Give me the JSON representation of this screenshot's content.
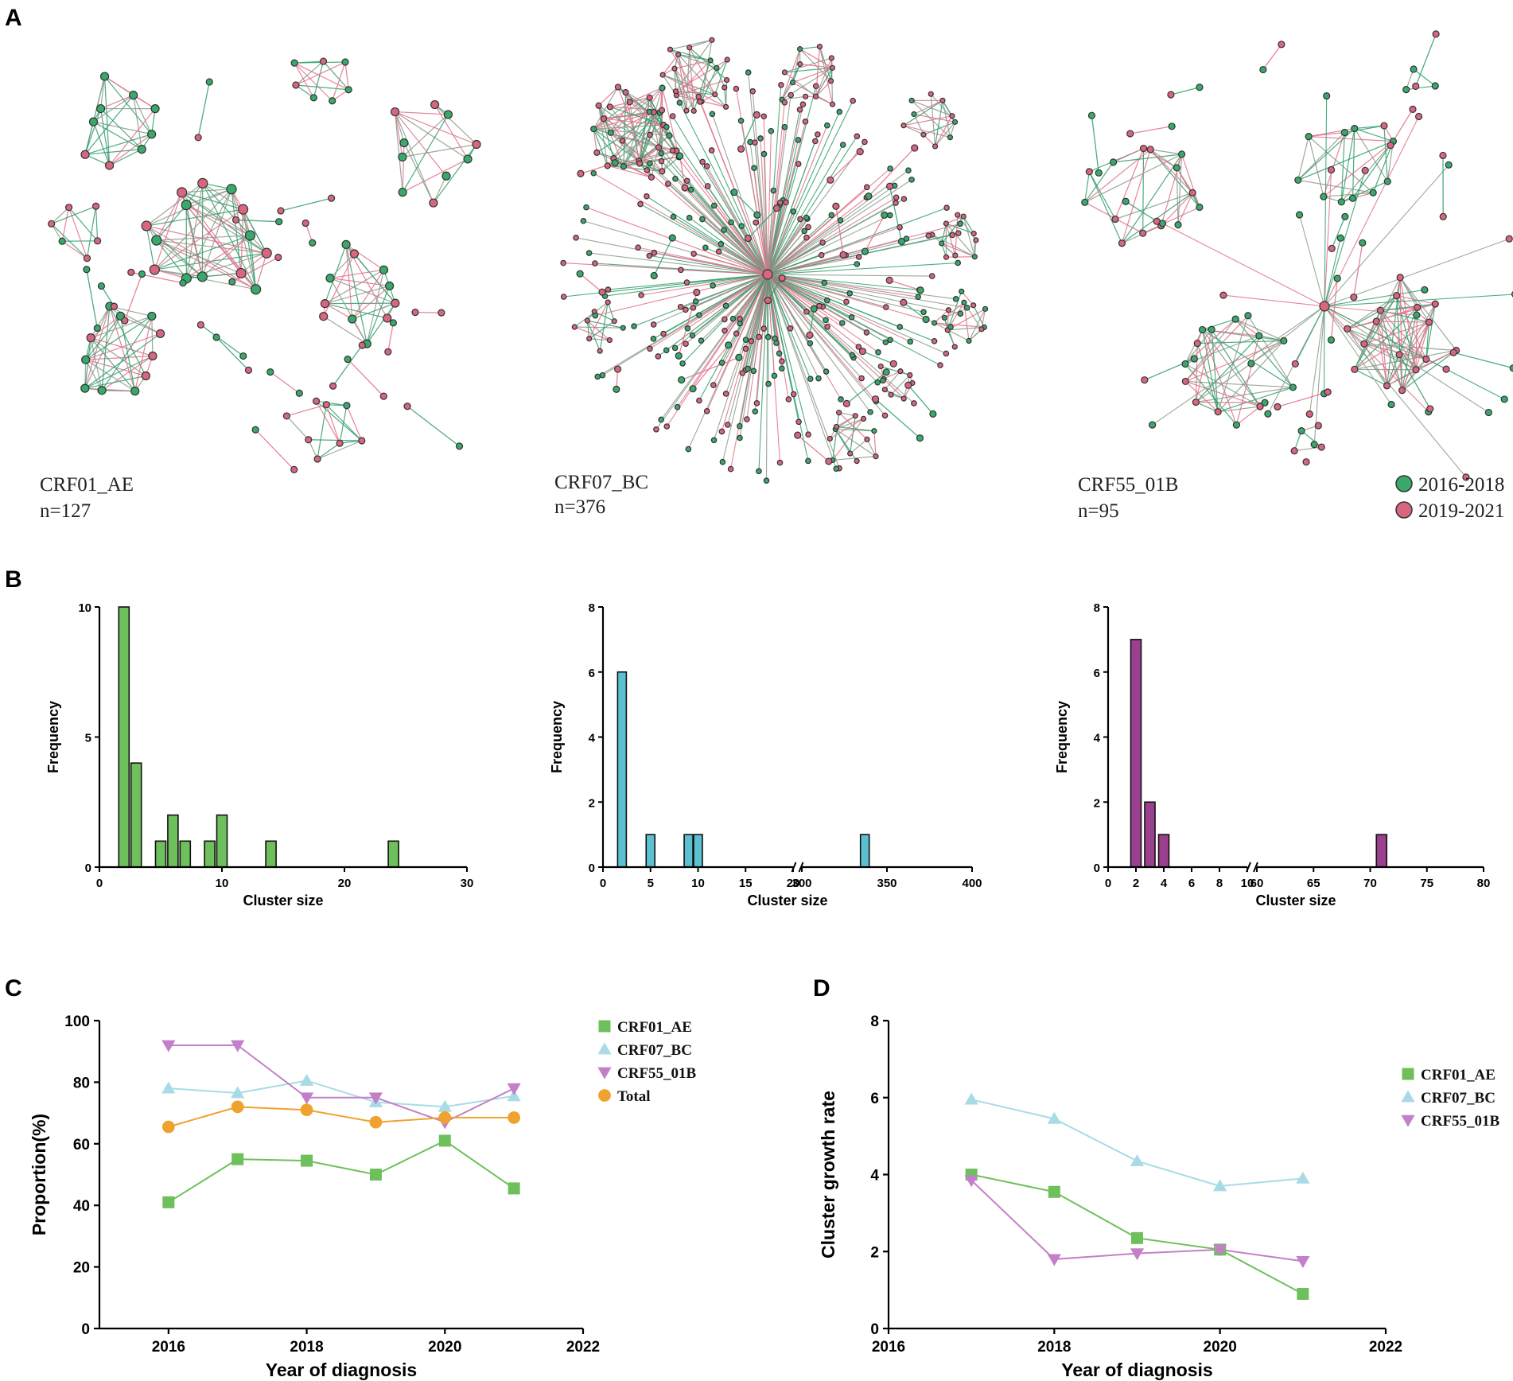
{
  "panels": {
    "A": "A",
    "B": "B",
    "C": "C",
    "D": "D"
  },
  "colors": {
    "green": "#39a96b",
    "pink": "#d9667f",
    "edge_green": "#2f9e6a",
    "edge_pink": "#e0708a",
    "edge_gray": "#8a9a8a",
    "hist_green": "#6dc05b",
    "hist_cyan": "#5bc0d0",
    "hist_purple": "#9b3f8f",
    "line_green": "#6dc05b",
    "line_cyan": "#a8dbe6",
    "line_purple": "#c380c8",
    "line_orange": "#f0a22e"
  },
  "networks": [
    {
      "name": "CRF01_AE",
      "count": "n=127"
    },
    {
      "name": "CRF07_BC",
      "count": "n=376"
    },
    {
      "name": "CRF55_01B",
      "count": "n=95"
    }
  ],
  "network_legend": [
    {
      "label": "2016-2018",
      "color": "#39a96b"
    },
    {
      "label": "2019-2021",
      "color": "#d9667f"
    }
  ],
  "chart_data": [
    {
      "id": "B1",
      "type": "bar",
      "title": "",
      "xlabel": "Cluster size",
      "ylabel": "Frequency",
      "color": "#6dc05b",
      "bars": [
        {
          "x": 2,
          "y": 10
        },
        {
          "x": 3,
          "y": 4
        },
        {
          "x": 5,
          "y": 1
        },
        {
          "x": 6,
          "y": 2
        },
        {
          "x": 7,
          "y": 1
        },
        {
          "x": 9,
          "y": 1
        },
        {
          "x": 10,
          "y": 2
        },
        {
          "x": 14,
          "y": 1
        },
        {
          "x": 24,
          "y": 1
        }
      ],
      "xlim": [
        0,
        30
      ],
      "ylim": [
        0,
        10
      ],
      "xticks": [
        0,
        10,
        20,
        30
      ],
      "yticks": [
        0,
        5,
        10
      ],
      "xtick_labels": [
        "0",
        "10",
        "20",
        "30"
      ],
      "ytick_labels": [
        "0",
        "5",
        "10"
      ]
    },
    {
      "id": "B2",
      "type": "bar",
      "title": "",
      "xlabel": "Cluster size",
      "ylabel": "Frequency",
      "color": "#5bc0d0",
      "broken_axis": {
        "segment1": [
          0,
          20
        ],
        "segment2": [
          300,
          400
        ]
      },
      "bars": [
        {
          "x": 2,
          "y": 6
        },
        {
          "x": 5,
          "y": 1
        },
        {
          "x": 9,
          "y": 1
        },
        {
          "x": 10,
          "y": 1
        },
        {
          "x": 337,
          "y": 1
        }
      ],
      "ylim": [
        0,
        8
      ],
      "xticks": [
        0,
        5,
        10,
        15,
        20,
        300,
        350,
        400
      ],
      "yticks": [
        0,
        2,
        4,
        6,
        8
      ],
      "xtick_labels": [
        "0",
        "5",
        "10",
        "15",
        "20",
        "300",
        "350",
        "400"
      ],
      "ytick_labels": [
        "0",
        "2",
        "4",
        "6",
        "8"
      ]
    },
    {
      "id": "B3",
      "type": "bar",
      "title": "",
      "xlabel": "Cluster size",
      "ylabel": "Frequency",
      "color": "#9b3f8f",
      "broken_axis": {
        "segment1": [
          0,
          10
        ],
        "segment2": [
          60,
          80
        ]
      },
      "bars": [
        {
          "x": 2,
          "y": 7
        },
        {
          "x": 3,
          "y": 2
        },
        {
          "x": 4,
          "y": 1
        },
        {
          "x": 71,
          "y": 1
        }
      ],
      "ylim": [
        0,
        8
      ],
      "xticks": [
        0,
        2,
        4,
        6,
        8,
        10,
        60,
        65,
        70,
        75,
        80
      ],
      "yticks": [
        0,
        2,
        4,
        6,
        8
      ],
      "xtick_labels": [
        "0",
        "2",
        "4",
        "6",
        "8",
        "10",
        "60",
        "65",
        "70",
        "75",
        "80"
      ],
      "ytick_labels": [
        "0",
        "2",
        "4",
        "6",
        "8"
      ]
    },
    {
      "id": "C",
      "type": "line",
      "title": "",
      "xlabel": "Year of diagnosis",
      "ylabel": "Proportion(%)",
      "xlim": [
        2015,
        2022
      ],
      "ylim": [
        0,
        100
      ],
      "xticks": [
        2016,
        2018,
        2020,
        2022
      ],
      "yticks": [
        0,
        20,
        40,
        60,
        80,
        100
      ],
      "xtick_labels": [
        "2016",
        "2018",
        "2020",
        "2022"
      ],
      "ytick_labels": [
        "0",
        "20",
        "40",
        "60",
        "80",
        "100"
      ],
      "x": [
        2016,
        2017,
        2018,
        2019,
        2020,
        2021
      ],
      "series": [
        {
          "name": "CRF01_AE",
          "marker": "square",
          "color": "#6dc05b",
          "values": [
            41,
            55,
            54.5,
            50,
            61,
            45.5
          ]
        },
        {
          "name": "CRF07_BC",
          "marker": "triangle-up",
          "color": "#a8dbe6",
          "values": [
            78,
            76.5,
            80.5,
            73.5,
            72,
            75.5
          ]
        },
        {
          "name": "CRF55_01B",
          "marker": "triangle-down",
          "color": "#c380c8",
          "values": [
            92,
            92,
            75,
            75,
            67,
            78
          ]
        },
        {
          "name": "Total",
          "marker": "circle",
          "color": "#f0a22e",
          "values": [
            65.5,
            72,
            71,
            67,
            68.5,
            68.5
          ]
        }
      ]
    },
    {
      "id": "D",
      "type": "line",
      "title": "",
      "xlabel": "Year of diagnosis",
      "ylabel": "Cluster growth rate",
      "xlim": [
        2016,
        2022
      ],
      "ylim": [
        0,
        8
      ],
      "xticks": [
        2016,
        2018,
        2020,
        2022
      ],
      "yticks": [
        0,
        2,
        4,
        6,
        8
      ],
      "xtick_labels": [
        "2016",
        "2018",
        "2020",
        "2022"
      ],
      "ytick_labels": [
        "0",
        "2",
        "4",
        "6",
        "8"
      ],
      "x": [
        2017,
        2018,
        2019,
        2020,
        2021
      ],
      "series": [
        {
          "name": "CRF01_AE",
          "marker": "square",
          "color": "#6dc05b",
          "values": [
            4.0,
            3.55,
            2.35,
            2.05,
            0.9
          ]
        },
        {
          "name": "CRF07_BC",
          "marker": "triangle-up",
          "color": "#a8dbe6",
          "values": [
            5.95,
            5.45,
            4.35,
            3.7,
            3.9
          ]
        },
        {
          "name": "CRF55_01B",
          "marker": "triangle-down",
          "color": "#c380c8",
          "values": [
            3.85,
            1.8,
            1.95,
            2.05,
            1.75
          ]
        }
      ]
    }
  ]
}
